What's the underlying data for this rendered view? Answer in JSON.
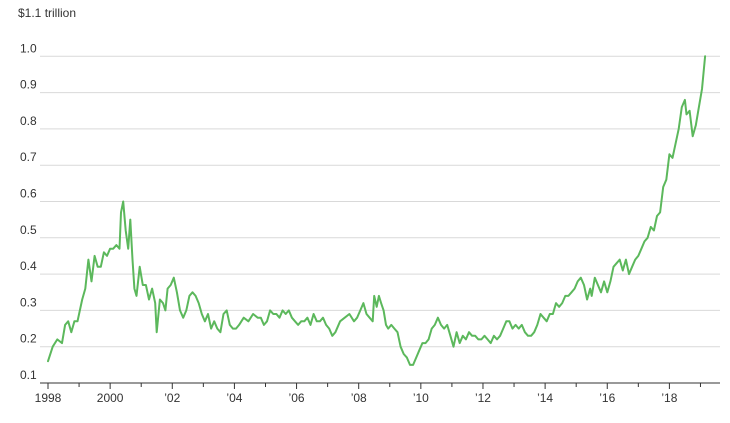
{
  "chart_data": {
    "type": "line",
    "title": "",
    "xlabel": "",
    "ylabel": "$1.1 trillion",
    "xlim": [
      1998,
      2019.5
    ],
    "ylim": [
      0.1,
      1.1
    ],
    "grid": true,
    "y_ticks": [
      {
        "value": 0.1,
        "label": "0.1"
      },
      {
        "value": 0.2,
        "label": "0.2"
      },
      {
        "value": 0.3,
        "label": "0.3"
      },
      {
        "value": 0.4,
        "label": "0.4"
      },
      {
        "value": 0.5,
        "label": "0.5"
      },
      {
        "value": 0.6,
        "label": "0.6"
      },
      {
        "value": 0.7,
        "label": "0.7"
      },
      {
        "value": 0.8,
        "label": "0.8"
      },
      {
        "value": 0.9,
        "label": "0.9"
      },
      {
        "value": 1.0,
        "label": "1.0"
      }
    ],
    "x_ticks": [
      {
        "value": 1998,
        "label": "1998"
      },
      {
        "value": 2000,
        "label": "2000"
      },
      {
        "value": 2002,
        "label": "’02"
      },
      {
        "value": 2004,
        "label": "’04"
      },
      {
        "value": 2006,
        "label": "’06"
      },
      {
        "value": 2008,
        "label": "’08"
      },
      {
        "value": 2010,
        "label": "’10"
      },
      {
        "value": 2012,
        "label": "’12"
      },
      {
        "value": 2014,
        "label": "’14"
      },
      {
        "value": 2016,
        "label": "’16"
      },
      {
        "value": 2018,
        "label": "’18"
      }
    ],
    "minor_x_ticks": [
      1999,
      2001,
      2003,
      2005,
      2007,
      2009,
      2011,
      2013,
      2015,
      2017,
      2019
    ],
    "series": [
      {
        "color": "#5cb85c",
        "points": [
          [
            1998.0,
            0.16
          ],
          [
            1998.15,
            0.2
          ],
          [
            1998.3,
            0.22
          ],
          [
            1998.45,
            0.21
          ],
          [
            1998.55,
            0.26
          ],
          [
            1998.65,
            0.27
          ],
          [
            1998.75,
            0.24
          ],
          [
            1998.85,
            0.27
          ],
          [
            1998.95,
            0.27
          ],
          [
            1999.1,
            0.33
          ],
          [
            1999.2,
            0.36
          ],
          [
            1999.3,
            0.44
          ],
          [
            1999.4,
            0.38
          ],
          [
            1999.5,
            0.45
          ],
          [
            1999.6,
            0.42
          ],
          [
            1999.7,
            0.42
          ],
          [
            1999.8,
            0.46
          ],
          [
            1999.9,
            0.45
          ],
          [
            2000.0,
            0.47
          ],
          [
            2000.1,
            0.47
          ],
          [
            2000.2,
            0.48
          ],
          [
            2000.3,
            0.47
          ],
          [
            2000.35,
            0.57
          ],
          [
            2000.42,
            0.6
          ],
          [
            2000.5,
            0.52
          ],
          [
            2000.58,
            0.47
          ],
          [
            2000.65,
            0.55
          ],
          [
            2000.72,
            0.44
          ],
          [
            2000.78,
            0.36
          ],
          [
            2000.85,
            0.34
          ],
          [
            2000.95,
            0.42
          ],
          [
            2001.05,
            0.37
          ],
          [
            2001.15,
            0.37
          ],
          [
            2001.25,
            0.33
          ],
          [
            2001.35,
            0.36
          ],
          [
            2001.45,
            0.32
          ],
          [
            2001.5,
            0.24
          ],
          [
            2001.6,
            0.33
          ],
          [
            2001.7,
            0.32
          ],
          [
            2001.78,
            0.3
          ],
          [
            2001.85,
            0.36
          ],
          [
            2001.95,
            0.37
          ],
          [
            2002.05,
            0.39
          ],
          [
            2002.15,
            0.35
          ],
          [
            2002.25,
            0.3
          ],
          [
            2002.35,
            0.28
          ],
          [
            2002.45,
            0.3
          ],
          [
            2002.55,
            0.34
          ],
          [
            2002.65,
            0.35
          ],
          [
            2002.75,
            0.34
          ],
          [
            2002.85,
            0.32
          ],
          [
            2002.95,
            0.29
          ],
          [
            2003.05,
            0.27
          ],
          [
            2003.15,
            0.29
          ],
          [
            2003.25,
            0.25
          ],
          [
            2003.35,
            0.27
          ],
          [
            2003.45,
            0.25
          ],
          [
            2003.55,
            0.24
          ],
          [
            2003.65,
            0.29
          ],
          [
            2003.75,
            0.3
          ],
          [
            2003.85,
            0.26
          ],
          [
            2003.95,
            0.25
          ],
          [
            2004.05,
            0.25
          ],
          [
            2004.15,
            0.26
          ],
          [
            2004.3,
            0.28
          ],
          [
            2004.45,
            0.27
          ],
          [
            2004.6,
            0.29
          ],
          [
            2004.75,
            0.28
          ],
          [
            2004.85,
            0.28
          ],
          [
            2004.95,
            0.26
          ],
          [
            2005.05,
            0.27
          ],
          [
            2005.15,
            0.3
          ],
          [
            2005.25,
            0.29
          ],
          [
            2005.35,
            0.29
          ],
          [
            2005.45,
            0.28
          ],
          [
            2005.55,
            0.3
          ],
          [
            2005.65,
            0.29
          ],
          [
            2005.75,
            0.3
          ],
          [
            2005.85,
            0.28
          ],
          [
            2005.95,
            0.27
          ],
          [
            2006.05,
            0.26
          ],
          [
            2006.15,
            0.27
          ],
          [
            2006.25,
            0.27
          ],
          [
            2006.35,
            0.28
          ],
          [
            2006.45,
            0.26
          ],
          [
            2006.55,
            0.29
          ],
          [
            2006.65,
            0.27
          ],
          [
            2006.75,
            0.27
          ],
          [
            2006.85,
            0.28
          ],
          [
            2006.95,
            0.26
          ],
          [
            2007.05,
            0.25
          ],
          [
            2007.15,
            0.23
          ],
          [
            2007.25,
            0.24
          ],
          [
            2007.4,
            0.27
          ],
          [
            2007.55,
            0.28
          ],
          [
            2007.7,
            0.29
          ],
          [
            2007.85,
            0.27
          ],
          [
            2007.95,
            0.28
          ],
          [
            2008.05,
            0.3
          ],
          [
            2008.15,
            0.32
          ],
          [
            2008.25,
            0.29
          ],
          [
            2008.35,
            0.28
          ],
          [
            2008.45,
            0.27
          ],
          [
            2008.5,
            0.34
          ],
          [
            2008.58,
            0.31
          ],
          [
            2008.65,
            0.34
          ],
          [
            2008.72,
            0.32
          ],
          [
            2008.8,
            0.3
          ],
          [
            2008.88,
            0.26
          ],
          [
            2008.95,
            0.25
          ],
          [
            2009.05,
            0.26
          ],
          [
            2009.15,
            0.25
          ],
          [
            2009.25,
            0.24
          ],
          [
            2009.35,
            0.2
          ],
          [
            2009.45,
            0.18
          ],
          [
            2009.55,
            0.17
          ],
          [
            2009.65,
            0.15
          ],
          [
            2009.75,
            0.15
          ],
          [
            2009.85,
            0.17
          ],
          [
            2009.95,
            0.19
          ],
          [
            2010.05,
            0.21
          ],
          [
            2010.15,
            0.21
          ],
          [
            2010.25,
            0.22
          ],
          [
            2010.35,
            0.25
          ],
          [
            2010.45,
            0.26
          ],
          [
            2010.55,
            0.28
          ],
          [
            2010.65,
            0.26
          ],
          [
            2010.75,
            0.25
          ],
          [
            2010.85,
            0.26
          ],
          [
            2010.95,
            0.23
          ],
          [
            2011.05,
            0.2
          ],
          [
            2011.15,
            0.24
          ],
          [
            2011.25,
            0.21
          ],
          [
            2011.35,
            0.23
          ],
          [
            2011.45,
            0.22
          ],
          [
            2011.55,
            0.24
          ],
          [
            2011.65,
            0.23
          ],
          [
            2011.75,
            0.23
          ],
          [
            2011.85,
            0.22
          ],
          [
            2011.95,
            0.22
          ],
          [
            2012.05,
            0.23
          ],
          [
            2012.15,
            0.22
          ],
          [
            2012.25,
            0.21
          ],
          [
            2012.35,
            0.23
          ],
          [
            2012.45,
            0.22
          ],
          [
            2012.55,
            0.23
          ],
          [
            2012.65,
            0.25
          ],
          [
            2012.75,
            0.27
          ],
          [
            2012.85,
            0.27
          ],
          [
            2012.95,
            0.25
          ],
          [
            2013.05,
            0.26
          ],
          [
            2013.15,
            0.25
          ],
          [
            2013.25,
            0.26
          ],
          [
            2013.35,
            0.24
          ],
          [
            2013.45,
            0.23
          ],
          [
            2013.55,
            0.23
          ],
          [
            2013.65,
            0.24
          ],
          [
            2013.75,
            0.26
          ],
          [
            2013.85,
            0.29
          ],
          [
            2013.95,
            0.28
          ],
          [
            2014.05,
            0.27
          ],
          [
            2014.15,
            0.29
          ],
          [
            2014.25,
            0.29
          ],
          [
            2014.35,
            0.32
          ],
          [
            2014.45,
            0.31
          ],
          [
            2014.55,
            0.32
          ],
          [
            2014.65,
            0.34
          ],
          [
            2014.75,
            0.34
          ],
          [
            2014.85,
            0.35
          ],
          [
            2014.95,
            0.36
          ],
          [
            2015.05,
            0.38
          ],
          [
            2015.15,
            0.39
          ],
          [
            2015.25,
            0.37
          ],
          [
            2015.35,
            0.33
          ],
          [
            2015.45,
            0.36
          ],
          [
            2015.5,
            0.34
          ],
          [
            2015.6,
            0.39
          ],
          [
            2015.7,
            0.37
          ],
          [
            2015.8,
            0.35
          ],
          [
            2015.9,
            0.38
          ],
          [
            2016.0,
            0.35
          ],
          [
            2016.1,
            0.38
          ],
          [
            2016.2,
            0.42
          ],
          [
            2016.3,
            0.43
          ],
          [
            2016.4,
            0.44
          ],
          [
            2016.5,
            0.41
          ],
          [
            2016.6,
            0.44
          ],
          [
            2016.7,
            0.4
          ],
          [
            2016.8,
            0.42
          ],
          [
            2016.9,
            0.44
          ],
          [
            2017.0,
            0.45
          ],
          [
            2017.1,
            0.47
          ],
          [
            2017.2,
            0.49
          ],
          [
            2017.3,
            0.5
          ],
          [
            2017.4,
            0.53
          ],
          [
            2017.5,
            0.52
          ],
          [
            2017.6,
            0.56
          ],
          [
            2017.7,
            0.57
          ],
          [
            2017.8,
            0.64
          ],
          [
            2017.9,
            0.66
          ],
          [
            2018.0,
            0.73
          ],
          [
            2018.1,
            0.72
          ],
          [
            2018.2,
            0.76
          ],
          [
            2018.3,
            0.8
          ],
          [
            2018.4,
            0.86
          ],
          [
            2018.5,
            0.88
          ],
          [
            2018.55,
            0.84
          ],
          [
            2018.65,
            0.85
          ],
          [
            2018.75,
            0.78
          ],
          [
            2018.85,
            0.81
          ],
          [
            2018.95,
            0.86
          ],
          [
            2019.05,
            0.91
          ],
          [
            2019.15,
            1.0
          ]
        ]
      }
    ]
  }
}
